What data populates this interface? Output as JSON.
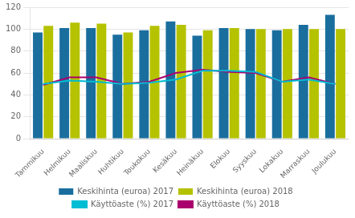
{
  "chart_data": {
    "type": "bar",
    "categories": [
      "Tammikuu",
      "Helmikuu",
      "Maaliskuu",
      "Huhtikuu",
      "Toukokuu",
      "Kesäkuu",
      "Heinäkuu",
      "Elokuu",
      "Syyskuu",
      "Lokakuu",
      "Marraskuu",
      "Joulukuu"
    ],
    "series": [
      {
        "name": "Keskihinta (euroa) 2017",
        "type": "bar",
        "color": "#1a6e9e",
        "values": [
          97,
          101,
          101,
          95,
          99,
          107,
          94,
          101,
          100,
          99,
          104,
          113
        ]
      },
      {
        "name": "Keskihinta (euroa) 2018",
        "type": "bar",
        "color": "#b5c200",
        "values": [
          103,
          106,
          105,
          97,
          103,
          104,
          99,
          101,
          100,
          100,
          100,
          100
        ]
      },
      {
        "name": "Käyttöaste (%) 2017",
        "type": "line",
        "color": "#00bcd4",
        "values": [
          50,
          53,
          52,
          50,
          51,
          54,
          62,
          62,
          61,
          52,
          54,
          50
        ]
      },
      {
        "name": "Käyttöaste (%) 2018",
        "type": "line",
        "color": "#aa006e",
        "values": [
          49,
          56,
          56,
          50,
          52,
          60,
          63,
          61,
          60,
          52,
          56,
          50
        ]
      }
    ],
    "ylim": [
      0,
      120
    ],
    "yticks": [
      0,
      20,
      40,
      60,
      80,
      100,
      120
    ],
    "grid": true,
    "legend": "bottom"
  }
}
